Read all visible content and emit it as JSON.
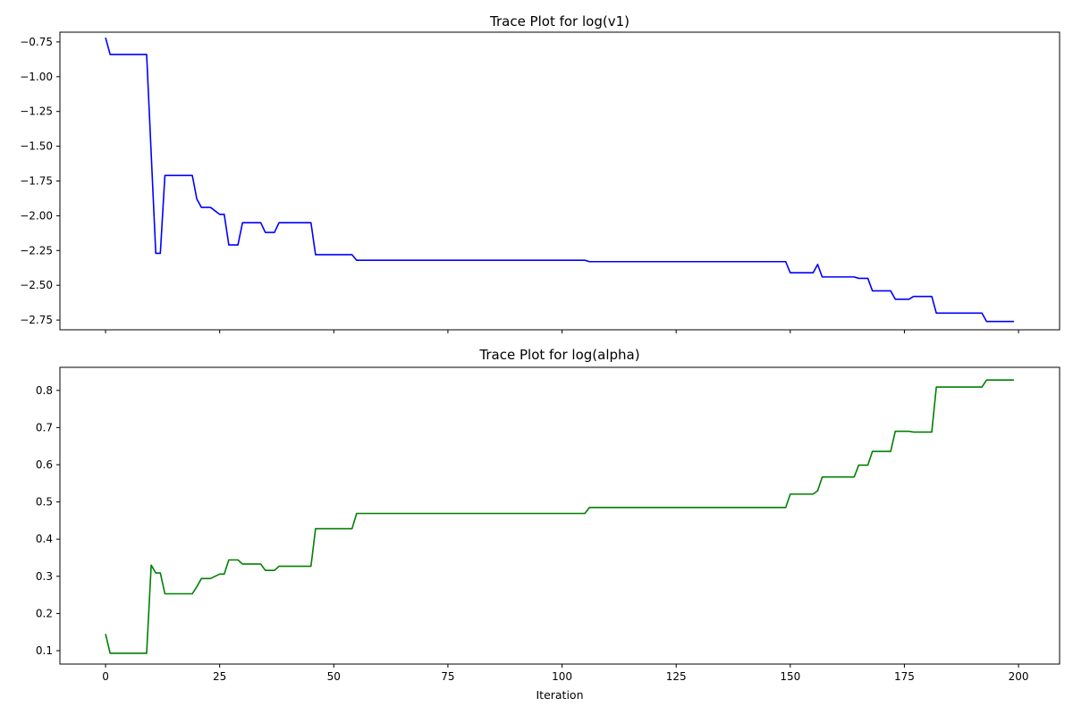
{
  "figure": {
    "background": "#ffffff"
  },
  "chart_data": [
    {
      "type": "line",
      "title": "Trace Plot for log(v1)",
      "xlabel": "",
      "ylabel": "",
      "xlim": [
        -10,
        209
      ],
      "ylim": [
        -2.82,
        -0.68
      ],
      "xticks": [
        0,
        25,
        50,
        75,
        100,
        125,
        150,
        175,
        200
      ],
      "show_xtick_labels": false,
      "yticks": [
        -2.75,
        -2.5,
        -2.25,
        -2.0,
        -1.75,
        -1.5,
        -1.25,
        -1.0,
        -0.75
      ],
      "ytick_labels": [
        "−2.75",
        "−2.50",
        "−2.25",
        "−2.00",
        "−1.75",
        "−1.50",
        "−1.25",
        "−1.00",
        "−0.75"
      ],
      "grid": false,
      "series": [
        {
          "name": "log(v1)",
          "color": "#0000ff",
          "x": [
            0,
            1,
            9,
            11,
            12,
            13,
            19,
            20,
            21,
            23,
            25,
            26,
            27,
            29,
            30,
            34,
            35,
            37,
            38,
            45,
            46,
            54,
            55,
            105,
            106,
            149,
            150,
            155,
            156,
            157,
            164,
            165,
            167,
            168,
            172,
            173,
            176,
            177,
            181,
            182,
            192,
            193,
            199
          ],
          "y": [
            -0.72,
            -0.84,
            -0.84,
            -2.27,
            -2.27,
            -1.71,
            -1.71,
            -1.88,
            -1.94,
            -1.94,
            -1.99,
            -1.99,
            -2.21,
            -2.21,
            -2.05,
            -2.05,
            -2.12,
            -2.12,
            -2.05,
            -2.05,
            -2.28,
            -2.28,
            -2.32,
            -2.32,
            -2.33,
            -2.33,
            -2.41,
            -2.41,
            -2.35,
            -2.44,
            -2.44,
            -2.45,
            -2.45,
            -2.54,
            -2.54,
            -2.6,
            -2.6,
            -2.58,
            -2.58,
            -2.7,
            -2.7,
            -2.76,
            -2.76
          ]
        }
      ]
    },
    {
      "type": "line",
      "title": "Trace Plot for log(alpha)",
      "xlabel": "Iteration",
      "ylabel": "",
      "xlim": [
        -10,
        209
      ],
      "ylim": [
        0.064,
        0.862
      ],
      "xticks": [
        0,
        25,
        50,
        75,
        100,
        125,
        150,
        175,
        200
      ],
      "xtick_labels": [
        "0",
        "25",
        "50",
        "75",
        "100",
        "125",
        "150",
        "175",
        "200"
      ],
      "show_xtick_labels": true,
      "yticks": [
        0.1,
        0.2,
        0.3,
        0.4,
        0.5,
        0.6,
        0.7,
        0.8
      ],
      "ytick_labels": [
        "0.1",
        "0.2",
        "0.3",
        "0.4",
        "0.5",
        "0.6",
        "0.7",
        "0.8"
      ],
      "grid": false,
      "series": [
        {
          "name": "log(alpha)",
          "color": "#008000",
          "x": [
            0,
            1,
            9,
            10,
            11,
            12,
            13,
            19,
            20,
            21,
            23,
            25,
            26,
            27,
            29,
            30,
            34,
            35,
            37,
            38,
            45,
            46,
            54,
            55,
            105,
            106,
            149,
            150,
            155,
            156,
            157,
            164,
            165,
            167,
            168,
            172,
            173,
            176,
            177,
            181,
            182,
            192,
            193,
            199
          ],
          "y": [
            0.145,
            0.093,
            0.093,
            0.33,
            0.309,
            0.309,
            0.253,
            0.253,
            0.272,
            0.294,
            0.294,
            0.306,
            0.306,
            0.344,
            0.344,
            0.333,
            0.333,
            0.316,
            0.316,
            0.327,
            0.327,
            0.428,
            0.428,
            0.469,
            0.469,
            0.485,
            0.485,
            0.521,
            0.521,
            0.53,
            0.567,
            0.567,
            0.599,
            0.599,
            0.636,
            0.636,
            0.69,
            0.69,
            0.688,
            0.688,
            0.809,
            0.809,
            0.828,
            0.828
          ]
        }
      ]
    }
  ]
}
